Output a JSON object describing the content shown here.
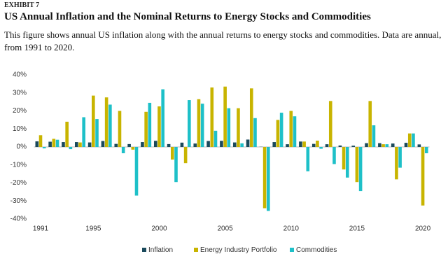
{
  "header": {
    "label": "EXHIBIT 7",
    "title": "US Annual Inflation and the Nominal Returns to Energy Stocks and Commodities",
    "subtitle": "This figure shows annual US inflation along with the annual returns to energy stocks and commodities. Data are annual, from 1991 to 2020."
  },
  "chart_data": {
    "type": "bar",
    "categories": [
      "1991",
      null,
      null,
      null,
      "1995",
      null,
      null,
      null,
      null,
      "2000",
      null,
      null,
      null,
      null,
      "2005",
      null,
      null,
      null,
      null,
      "2010",
      null,
      null,
      null,
      null,
      "2015",
      null,
      null,
      null,
      null,
      "2020"
    ],
    "series": [
      {
        "name": "Inflation",
        "color": "#1b4a5c",
        "values": [
          3.1,
          2.9,
          2.7,
          2.7,
          2.5,
          3.3,
          1.7,
          1.6,
          2.7,
          3.4,
          1.6,
          2.4,
          1.9,
          3.3,
          3.4,
          2.5,
          4.1,
          0.1,
          2.7,
          1.5,
          3.0,
          1.7,
          1.5,
          0.8,
          0.7,
          2.1,
          2.1,
          1.9,
          2.3,
          1.4
        ]
      },
      {
        "name": "Energy Industry Portfolio",
        "color": "#c8b400",
        "values": [
          6.5,
          4.5,
          14,
          2.5,
          28.5,
          27.5,
          20,
          -1.5,
          19.5,
          22.5,
          -7,
          -9,
          26.5,
          33,
          33.5,
          21.5,
          32.5,
          -34,
          15,
          20,
          3,
          3.5,
          25.5,
          -12.5,
          -19.5,
          25.5,
          1.5,
          -18,
          7.5,
          -32.5
        ]
      },
      {
        "name": "Commodities",
        "color": "#1ec0c8",
        "values": [
          -0.8,
          4.0,
          -1.2,
          16.5,
          15.5,
          23.5,
          -3.5,
          -27,
          24.5,
          32,
          -19.5,
          26,
          24,
          9,
          21.5,
          2,
          16,
          -35.5,
          19,
          17,
          -13.5,
          -1,
          -9.5,
          -17,
          -24.5,
          12,
          1.5,
          -11.5,
          7.5,
          -3.5
        ]
      }
    ],
    "ylim": [
      -40,
      40
    ],
    "yticks": [
      {
        "value": -40,
        "label": "-40%"
      },
      {
        "value": -30,
        "label": "-30%"
      },
      {
        "value": -20,
        "label": "-20%"
      },
      {
        "value": -10,
        "label": "-10%"
      },
      {
        "value": 0,
        "label": "0%"
      },
      {
        "value": 10,
        "label": "10%"
      },
      {
        "value": 20,
        "label": "20%"
      },
      {
        "value": 30,
        "label": "30%"
      },
      {
        "value": 40,
        "label": "40%"
      }
    ],
    "legend": "bottom"
  }
}
